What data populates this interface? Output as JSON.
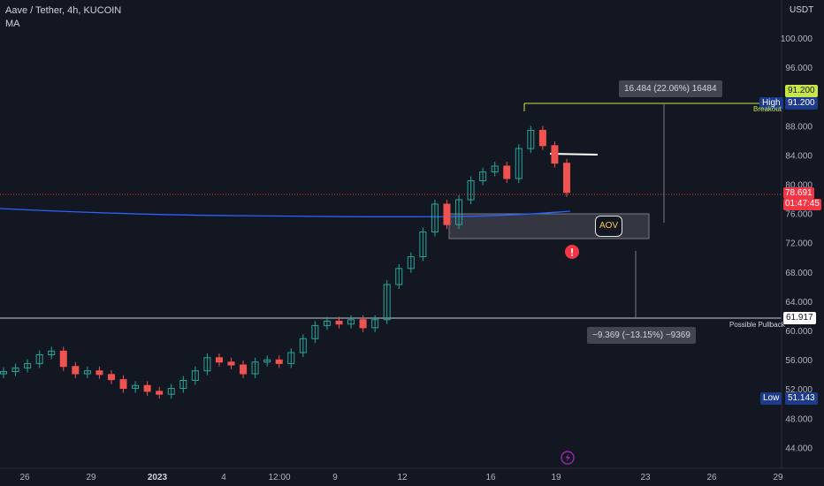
{
  "header": {
    "symbol_line": "Aave / Tether, 4h, KUCOIN",
    "indicator": "MA"
  },
  "price_axis": {
    "currency": "USDT",
    "ticks": [
      "100.000",
      "96.000",
      "92.000",
      "88.000",
      "84.000",
      "80.000",
      "76.000",
      "72.000",
      "68.000",
      "64.000",
      "60.000",
      "56.000",
      "52.000",
      "48.000",
      "44.000"
    ]
  },
  "time_axis": {
    "ticks": [
      "26",
      "29",
      "2023",
      "4",
      "12:00",
      "9",
      "12",
      "16",
      "19",
      "23",
      "26",
      "29"
    ]
  },
  "tags": {
    "high_label": "High",
    "high_value": "91.200",
    "breakout_label": "Breakout",
    "breakout_value": "91.200",
    "last_price": "78.691",
    "countdown": "01:47:45",
    "pullback_label": "Possible Pullback",
    "pullback_value": "61.917",
    "low_label": "Low",
    "low_value": "51.143"
  },
  "measures": {
    "up": "16.484 (22.06%) 16484",
    "down": "−9.369 (−13.15%) −9369"
  },
  "zone": {
    "label": "AOV"
  },
  "colors": {
    "background": "#131722",
    "up_candle": "#26a69a",
    "down_candle": "#ef5350",
    "ma_line": "#2962ff",
    "high_line": "#c8e64a",
    "last_price": "#f23645",
    "high_tag": "#1e3a8a"
  },
  "chart_data": {
    "type": "line",
    "series": [
      {
        "values": [
          54.5,
          55.0,
          55.6,
          56.8,
          57.3,
          55.2,
          54.2,
          54.6,
          54.1,
          53.4,
          52.2,
          52.6,
          51.8,
          51.4,
          52.2,
          53.3,
          54.6,
          56.4,
          55.8,
          55.4,
          54.2,
          55.8,
          56.1,
          55.6,
          57.1,
          59.0,
          60.8,
          61.4,
          61.0,
          61.6,
          60.5,
          61.6,
          66.4,
          68.6,
          70.2,
          73.6,
          77.4,
          74.6,
          78.0,
          80.6,
          81.8,
          82.6,
          80.9,
          85.0,
          87.5,
          85.4,
          83.0,
          79.0
        ]
      }
    ],
    "ylim": [
      43,
      104
    ]
  }
}
